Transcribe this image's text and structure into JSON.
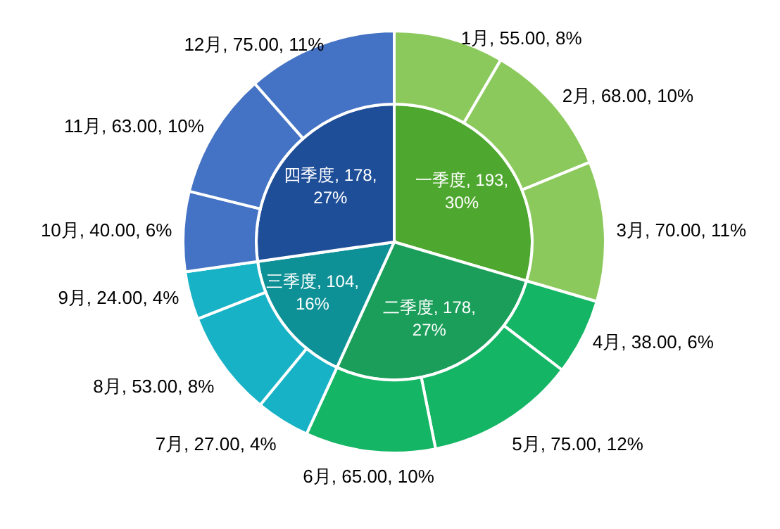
{
  "chart_data": [
    {
      "type": "pie",
      "categories": [
        "一季度",
        "二季度",
        "三季度",
        "四季度"
      ],
      "values": [
        193,
        178,
        104,
        178
      ],
      "value_labels": [
        "193, 30%",
        "178, 27%",
        "104, 16%",
        "178, 27%"
      ],
      "colors": [
        "#4ea72e",
        "#1a9e5a",
        "#0e9196",
        "#1f4e99"
      ]
    },
    {
      "type": "donut",
      "categories": [
        "1月",
        "2月",
        "3月",
        "4月",
        "5月",
        "6月",
        "7月",
        "8月",
        "9月",
        "10月",
        "11月",
        "12月"
      ],
      "values": [
        55,
        68,
        70,
        38,
        75,
        65,
        27,
        53,
        24,
        40,
        63,
        75
      ],
      "value_labels": [
        "55.00, 8%",
        "68.00, 10%",
        "70.00, 11%",
        "38.00, 6%",
        "75.00, 12%",
        "65.00, 10%",
        "27.00, 4%",
        "53.00, 8%",
        "24.00, 4%",
        "40.00, 6%",
        "63.00, 10%",
        "75.00, 11%"
      ],
      "colors": [
        "#8cc95c",
        "#8cc95c",
        "#8cc95c",
        "#14b564",
        "#14b564",
        "#14b564",
        "#18b2c6",
        "#18b2c6",
        "#18b2c6",
        "#4472c4",
        "#4472c4",
        "#4472c4"
      ]
    }
  ]
}
